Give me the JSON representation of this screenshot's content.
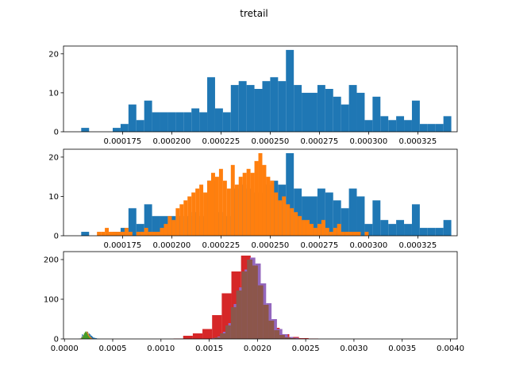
{
  "figure": {
    "title": "tretail"
  },
  "colors": {
    "c0": "#1f77b4",
    "c1": "#ff7f0e",
    "c2": "#2ca02c",
    "c3": "#d62728",
    "c4": "#9467bd",
    "c5": "#8c564b"
  },
  "chart_data": [
    {
      "type": "histogram",
      "xlim": [
        0.000145,
        0.000345
      ],
      "ylim": [
        0,
        22
      ],
      "xticks": [
        0.000175,
        0.0002,
        0.000225,
        0.00025,
        0.000275,
        0.0003,
        0.000325
      ],
      "xtick_labels": [
        "0.000175",
        "0.000200",
        "0.000225",
        "0.000250",
        "0.000275",
        "0.000300",
        "0.000325"
      ],
      "yticks": [
        0,
        10,
        20
      ],
      "series": [
        {
          "color": "c0",
          "bin_start": 0.00015,
          "bin_width": 4e-06,
          "counts": [
            0,
            1,
            0,
            0,
            0,
            1,
            2,
            7,
            3,
            8,
            5,
            5,
            5,
            5,
            5,
            6,
            5,
            14,
            6,
            5,
            12,
            13,
            12,
            11,
            13,
            14,
            13,
            21,
            12,
            10,
            10,
            12,
            11,
            9,
            7,
            12,
            10,
            3,
            9,
            4,
            3,
            4,
            3,
            8,
            2,
            2,
            2,
            4,
            0,
            1,
            0,
            0,
            0,
            0,
            0,
            1
          ]
        }
      ]
    },
    {
      "type": "histogram",
      "xlim": [
        0.000145,
        0.000345
      ],
      "ylim": [
        0,
        22
      ],
      "xticks": [
        0.000175,
        0.0002,
        0.000225,
        0.00025,
        0.000275,
        0.0003,
        0.000325
      ],
      "xtick_labels": [
        "0.000175",
        "0.000200",
        "0.000225",
        "0.000250",
        "0.000275",
        "0.000300",
        "0.000325"
      ],
      "yticks": [
        0,
        10,
        20
      ],
      "series": [
        {
          "color": "c0",
          "bin_start": 0.00015,
          "bin_width": 4e-06,
          "counts": [
            0,
            1,
            0,
            0,
            0,
            1,
            2,
            7,
            3,
            8,
            5,
            5,
            5,
            5,
            5,
            6,
            5,
            14,
            6,
            5,
            12,
            13,
            12,
            11,
            13,
            14,
            13,
            21,
            12,
            10,
            10,
            12,
            11,
            9,
            7,
            12,
            10,
            3,
            9,
            4,
            3,
            4,
            3,
            8,
            2,
            2,
            2,
            4,
            0,
            1,
            0,
            0,
            0,
            0,
            0,
            1
          ]
        },
        {
          "color": "c1",
          "bin_start": 0.000162,
          "bin_width": 2e-06,
          "counts": [
            1,
            1,
            2,
            1,
            1,
            1,
            1,
            2,
            1,
            0,
            1,
            1,
            2,
            1,
            1,
            1,
            2,
            3,
            5,
            4,
            7,
            8,
            9,
            10,
            11,
            12,
            13,
            11,
            14,
            16,
            15,
            17,
            14,
            12,
            18,
            13,
            15,
            16,
            17,
            16,
            19,
            21,
            18,
            15,
            14,
            11,
            9,
            10,
            8,
            7,
            6,
            5,
            4,
            4,
            3,
            2,
            3,
            4,
            2,
            1,
            2,
            3,
            1,
            1,
            1,
            1,
            1,
            0,
            1,
            0
          ]
        }
      ]
    },
    {
      "type": "histogram",
      "xlim": [
        -1e-05,
        0.00407
      ],
      "ylim": [
        0,
        220
      ],
      "xticks": [
        0,
        0.0005,
        0.001,
        0.0015,
        0.002,
        0.0025,
        0.003,
        0.0035,
        0.004
      ],
      "xtick_labels": [
        "0.0000",
        "0.0005",
        "0.0010",
        "0.0015",
        "0.0020",
        "0.0025",
        "0.0030",
        "0.0035",
        "0.0040"
      ],
      "yticks": [
        0,
        100,
        200
      ],
      "series": [
        {
          "color": "c0",
          "bin_start": 0.00015,
          "bin_width": 8e-06,
          "counts": [
            1,
            0,
            1,
            5,
            12,
            10,
            8,
            8,
            9,
            12,
            14,
            18,
            13,
            14,
            12,
            9,
            8,
            6,
            4,
            3,
            3,
            2,
            2,
            1,
            1
          ]
        },
        {
          "color": "c1",
          "bin_start": 0.00016,
          "bin_width": 8e-06,
          "counts": [
            1,
            2,
            3,
            6,
            9,
            12,
            15,
            18,
            17,
            19,
            15,
            12,
            8,
            6,
            4,
            2,
            1
          ]
        },
        {
          "color": "c2",
          "bin_start": 0.00017,
          "bin_width": 8e-06,
          "counts": [
            1,
            3,
            5,
            9,
            14,
            17,
            19,
            16,
            12,
            8,
            5,
            3,
            1
          ]
        },
        {
          "color": "c3",
          "bin_start": 0.00113,
          "bin_width": 0.0001,
          "counts": [
            1,
            8,
            14,
            25,
            60,
            115,
            170,
            210,
            140,
            70,
            28,
            12,
            5,
            2,
            1
          ]
        },
        {
          "color": "c4",
          "bin_start": 0.00153,
          "bin_width": 5.6e-05,
          "counts": [
            2,
            6,
            18,
            40,
            88,
            130,
            175,
            205,
            190,
            140,
            90,
            50,
            25,
            12,
            5,
            3,
            1
          ]
        },
        {
          "color": "c5",
          "bin_start": 0.0015,
          "bin_width": 5.6e-05,
          "counts": [
            1,
            4,
            14,
            34,
            80,
            122,
            170,
            200,
            185,
            135,
            86,
            46,
            22,
            10,
            4,
            2,
            1
          ]
        }
      ]
    }
  ]
}
